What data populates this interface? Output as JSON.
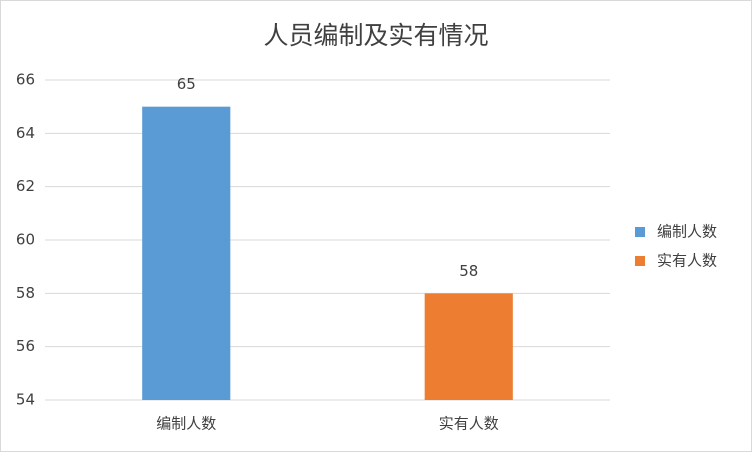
{
  "chart_data": {
    "type": "bar",
    "title": "人员编制及实有情况",
    "categories": [
      "编制人数",
      "实有人数"
    ],
    "values": [
      65,
      58
    ],
    "colors": [
      "#5b9bd5",
      "#ed7d31"
    ],
    "ylim": [
      54,
      66
    ],
    "yticks": [
      54,
      56,
      58,
      60,
      62,
      64,
      66
    ],
    "grid": true,
    "legend": "right"
  }
}
